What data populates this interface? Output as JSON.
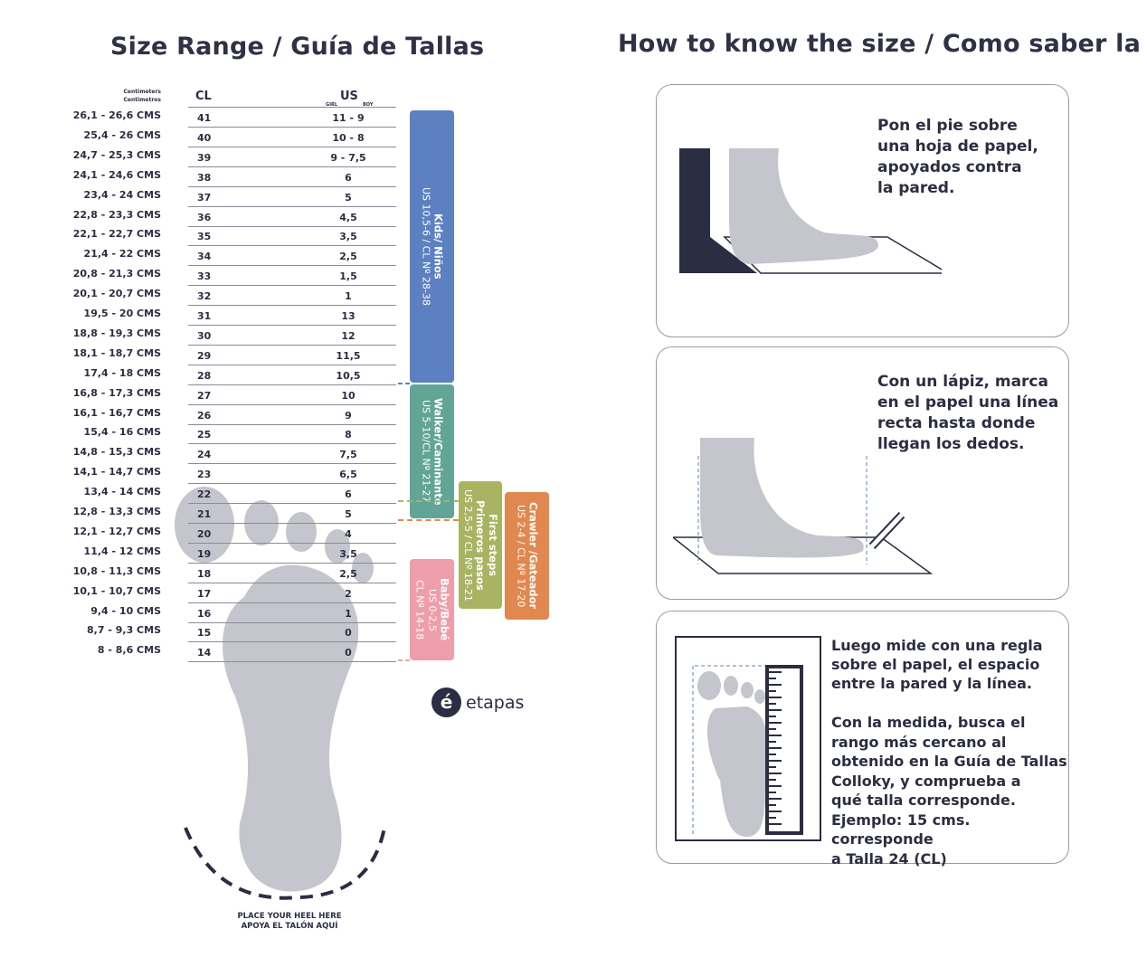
{
  "left_title": "Size Range / Guía de Tallas",
  "right_title": "How to know the size / Como saber la talla",
  "table": {
    "col_cm_label": [
      "Centimeters",
      "Centimetros"
    ],
    "col_cl_label": "CL",
    "col_us_label": "US",
    "girl_label": "GIRL",
    "boy_label": "BOY",
    "rows": [
      {
        "cm": "26,1 - 26,6 CMS",
        "cl": "41",
        "us": "11  -  9"
      },
      {
        "cm": "25,4 - 26 CMS",
        "cl": "40",
        "us": "10  -  8"
      },
      {
        "cm": "24,7 - 25,3 CMS",
        "cl": "39",
        "us": "9  -  7,5"
      },
      {
        "cm": "24,1 - 24,6 CMS",
        "cl": "38",
        "us": "6"
      },
      {
        "cm": "23,4 - 24 CMS",
        "cl": "37",
        "us": "5"
      },
      {
        "cm": "22,8 - 23,3 CMS",
        "cl": "36",
        "us": "4,5"
      },
      {
        "cm": "22,1 - 22,7 CMS",
        "cl": "35",
        "us": "3,5"
      },
      {
        "cm": "21,4 - 22 CMS",
        "cl": "34",
        "us": "2,5"
      },
      {
        "cm": "20,8 - 21,3 CMS",
        "cl": "33",
        "us": "1,5"
      },
      {
        "cm": "20,1 - 20,7 CMS",
        "cl": "32",
        "us": "1"
      },
      {
        "cm": "19,5 - 20 CMS",
        "cl": "31",
        "us": "13"
      },
      {
        "cm": "18,8 - 19,3 CMS",
        "cl": "30",
        "us": "12"
      },
      {
        "cm": "18,1 - 18,7 CMS",
        "cl": "29",
        "us": "11,5"
      },
      {
        "cm": "17,4 - 18 CMS",
        "cl": "28",
        "us": "10,5"
      },
      {
        "cm": "16,8 - 17,3 CMS",
        "cl": "27",
        "us": "10"
      },
      {
        "cm": "16,1 - 16,7 CMS",
        "cl": "26",
        "us": "9"
      },
      {
        "cm": "15,4 - 16 CMS",
        "cl": "25",
        "us": "8"
      },
      {
        "cm": "14,8 - 15,3 CMS",
        "cl": "24",
        "us": "7,5"
      },
      {
        "cm": "14,1 - 14,7 CMS",
        "cl": "23",
        "us": "6,5"
      },
      {
        "cm": "13,4 - 14 CMS",
        "cl": "22",
        "us": "6"
      },
      {
        "cm": "12,8 - 13,3 CMS",
        "cl": "21",
        "us": "5"
      },
      {
        "cm": "12,1 - 12,7 CMS",
        "cl": "20",
        "us": "4"
      },
      {
        "cm": "11,4 - 12 CMS",
        "cl": "19",
        "us": "3,5"
      },
      {
        "cm": "10,8 - 11,3 CMS",
        "cl": "18",
        "us": "2,5"
      },
      {
        "cm": "10,1 - 10,7 CMS",
        "cl": "17",
        "us": "2"
      },
      {
        "cm": "9,4 - 10 CMS",
        "cl": "16",
        "us": "1"
      },
      {
        "cm": "8,7 - 9,3 CMS",
        "cl": "15",
        "us": "0"
      },
      {
        "cm": "8 - 8,6 CMS",
        "cl": "14",
        "us": "0"
      }
    ]
  },
  "categories": [
    {
      "title": "Kids/ Niños",
      "range": "US 10,5-6 / CL Nº 28-38",
      "color": "#5c80c1"
    },
    {
      "title": "Walker/Caminante",
      "range": "US 5-10/CL Nº 21-27",
      "color": "#62a596"
    },
    {
      "title": "First steps",
      "title2": "Primeros pasos",
      "range": "US 2,5-5 / CL Nº 18-21",
      "color": "#a9b462"
    },
    {
      "title": "Crawler /Gateador",
      "range": "US 2-4 / CL Nº 17-20",
      "color": "#e0884f"
    },
    {
      "title": "Baby/Bebé",
      "range": "US 0-2,5",
      "range2": "CL Nº 14-18",
      "color": "#ee9eaa"
    }
  ],
  "heel_text": [
    "PLACE YOUR HEEL HERE",
    "APOYA EL TALÓN AQUÍ"
  ],
  "logo": "etapas",
  "steps": [
    {
      "text": "Pon el pie sobre\nuna hoja de papel,\napoyados contra\nla pared."
    },
    {
      "text": "Con un lápiz, marca\nen el papel una línea\nrecta hasta donde\nllegan los dedos."
    },
    {
      "text": "Luego mide con una regla\nsobre el papel, el espacio\nentre la pared y la línea.",
      "text2": "Con la medida, busca el\nrango más cercano al\nobtenido en la Guía de Tallas\nColloky, y comprueba a\nqué talla corresponde.\nEjemplo:  15 cms. corresponde\na Talla 24 (CL)"
    }
  ]
}
